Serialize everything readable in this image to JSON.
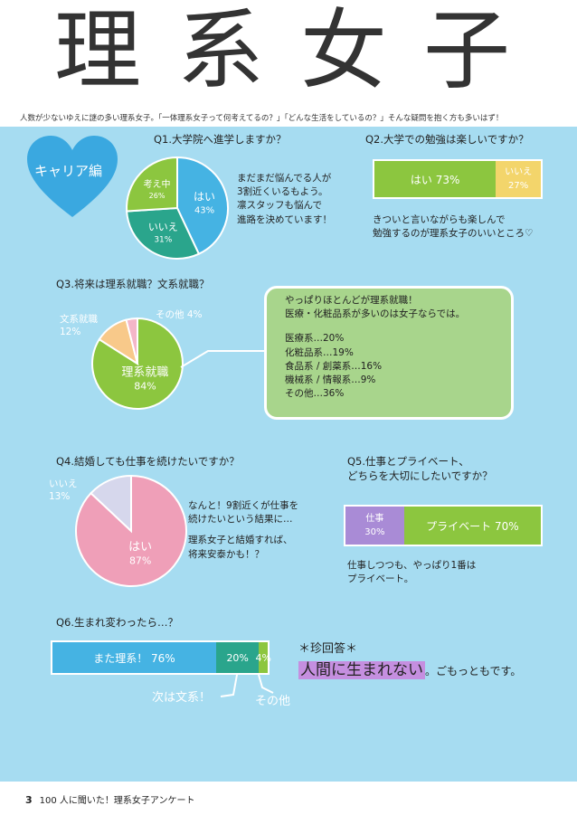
{
  "header": {
    "title": "理系女子",
    "subtitle": "人数が少ないゆえに謎の多い理系女子。「一体理系女子って何考えてるの？」「どんな生活をしているの？」そんな疑問を抱く方も多いはず！"
  },
  "badge": {
    "label": "キャリア編"
  },
  "q1": {
    "question": "Q1.大学院へ進学しますか？",
    "note": [
      "まだまだ悩んでる人が",
      "3割近くいるもよう。",
      "凛スタッフも悩んで",
      "進路を決めています！"
    ]
  },
  "q2": {
    "question": "Q2.大学での勉強は楽しいですか？",
    "note": [
      "きついと言いながらも楽しんで",
      "勉強するのが理系女子のいいところ♡"
    ]
  },
  "q3": {
    "question": "Q3.将来は理系就職？文系就職？",
    "box": [
      "やっぱりほとんどが理系就職！",
      "医療・化粧品系が多いのは女子ならでは。",
      "",
      "医療系…20%",
      "化粧品系…19%",
      "食品系 / 創薬系…16%",
      "機械系 / 情報系…9%",
      "その他…36%"
    ]
  },
  "q4": {
    "question": "Q4.結婚しても仕事を続けたいですか？",
    "note": [
      "なんと！9割近くが仕事を",
      "続けたいという結果に…",
      "",
      "理系女子と結婚すれば、",
      "将来安泰かも！？"
    ]
  },
  "q5": {
    "question": [
      "Q5.仕事とプライベート、",
      "どちらを大切にしたいですか？"
    ],
    "note": [
      "仕事しつつも、やっぱり1番は",
      "プライベート。"
    ]
  },
  "q6": {
    "question": "Q6.生まれ変わったら…？",
    "callout_bunkei": "次は文系！",
    "callout_other": "その他",
    "rare_title": "＊珍回答＊",
    "rare_answer": "人間に生まれない",
    "rare_comment": "。ごもっともです。"
  },
  "footer": {
    "page": "3",
    "text": "100 人に聞いた！理系女子アンケート"
  },
  "colors": {
    "panel": "#a6dcf1",
    "blue": "#45b3e3",
    "teal": "#2aa58c",
    "green": "#8cc63f",
    "pink": "#ef9fb8",
    "orange": "#f8c98a",
    "purple": "#a98bd6",
    "yellow": "#f3d56b"
  },
  "chart_data": [
    {
      "type": "pie",
      "question": "Q1.大学院へ進学しますか？",
      "labels": [
        "はい",
        "いいえ",
        "考え中"
      ],
      "values": [
        43,
        31,
        26
      ],
      "colors": [
        "#45b3e3",
        "#2aa58c",
        "#8cc63f"
      ]
    },
    {
      "type": "bar",
      "question": "Q2.大学での勉強は楽しいですか？",
      "labels": [
        "はい",
        "いいえ"
      ],
      "values": [
        73,
        27
      ],
      "colors": [
        "#8cc63f",
        "#f3d56b"
      ]
    },
    {
      "type": "pie",
      "question": "Q3.将来は理系就職？文系就職？",
      "labels": [
        "理系就職",
        "文系就職",
        "その他"
      ],
      "values": [
        84,
        12,
        4
      ],
      "colors": [
        "#8cc63f",
        "#f8c98a",
        "#f4b6c8"
      ]
    },
    {
      "type": "pie",
      "question": "Q4.結婚しても仕事を続けたいですか？",
      "labels": [
        "はい",
        "いいえ"
      ],
      "values": [
        87,
        13
      ],
      "colors": [
        "#ef9fb8",
        "#d6d7ec"
      ]
    },
    {
      "type": "bar",
      "question": "Q5.仕事とプライベート、どちらを大切にしたいですか？",
      "labels": [
        "仕事",
        "プライベート"
      ],
      "values": [
        30,
        70
      ],
      "colors": [
        "#a98bd6",
        "#8cc63f"
      ]
    },
    {
      "type": "bar",
      "question": "Q6.生まれ変わったら…？",
      "labels": [
        "また理系！",
        "",
        ""
      ],
      "values": [
        76,
        20,
        4
      ],
      "colors": [
        "#45b3e3",
        "#2aa58c",
        "#8cc63f"
      ]
    }
  ]
}
